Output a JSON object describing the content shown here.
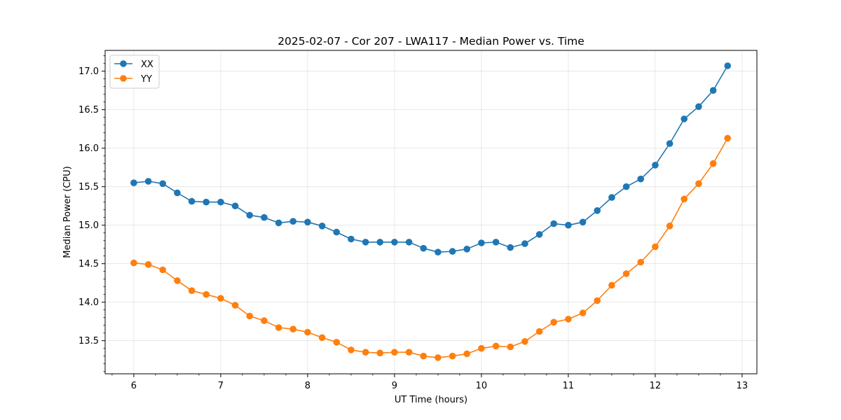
{
  "chart_data": {
    "type": "line",
    "title": "2025-02-07 - Cor 207 - LWA117 - Median Power vs. Time",
    "xlabel": "UT Time (hours)",
    "ylabel": "Median Power (CPU)",
    "xlim": [
      5.67,
      13.17
    ],
    "ylim": [
      13.07,
      17.27
    ],
    "grid": true,
    "legend_position": "top-left",
    "x_ticks": [
      6,
      7,
      8,
      9,
      10,
      11,
      12,
      13
    ],
    "x_tick_labels": [
      "6",
      "7",
      "8",
      "9",
      "10",
      "11",
      "12",
      "13"
    ],
    "y_ticks": [
      13.5,
      14.0,
      14.5,
      15.0,
      15.5,
      16.0,
      16.5,
      17.0
    ],
    "y_tick_labels": [
      "13.5",
      "14.0",
      "14.5",
      "15.0",
      "15.5",
      "16.0",
      "16.5",
      "17.0"
    ],
    "x": [
      6.0,
      6.167,
      6.333,
      6.5,
      6.667,
      6.833,
      7.0,
      7.167,
      7.333,
      7.5,
      7.667,
      7.833,
      8.0,
      8.167,
      8.333,
      8.5,
      8.667,
      8.833,
      9.0,
      9.167,
      9.333,
      9.5,
      9.667,
      9.833,
      10.0,
      10.167,
      10.333,
      10.5,
      10.667,
      10.833,
      11.0,
      11.167,
      11.333,
      11.5,
      11.667,
      11.833,
      12.0,
      12.167,
      12.333,
      12.5,
      12.667,
      12.833
    ],
    "series": [
      {
        "name": "XX",
        "color": "#1f77b4",
        "values": [
          15.55,
          15.57,
          15.54,
          15.42,
          15.31,
          15.3,
          15.3,
          15.25,
          15.13,
          15.1,
          15.03,
          15.05,
          15.04,
          14.99,
          14.91,
          14.82,
          14.78,
          14.78,
          14.78,
          14.78,
          14.7,
          14.65,
          14.66,
          14.69,
          14.77,
          14.78,
          14.71,
          14.76,
          14.88,
          15.02,
          15.0,
          15.04,
          15.19,
          15.36,
          15.5,
          15.6,
          15.78,
          16.06,
          16.38,
          16.54,
          16.75,
          17.07
        ]
      },
      {
        "name": "YY",
        "color": "#ff7f0e",
        "values": [
          14.51,
          14.49,
          14.42,
          14.28,
          14.15,
          14.1,
          14.05,
          13.96,
          13.82,
          13.76,
          13.67,
          13.65,
          13.61,
          13.54,
          13.48,
          13.38,
          13.35,
          13.34,
          13.35,
          13.35,
          13.3,
          13.28,
          13.3,
          13.33,
          13.4,
          13.43,
          13.42,
          13.49,
          13.62,
          13.74,
          13.78,
          13.86,
          14.02,
          14.22,
          14.37,
          14.52,
          14.72,
          14.99,
          15.34,
          15.54,
          15.8,
          16.13
        ]
      }
    ]
  }
}
